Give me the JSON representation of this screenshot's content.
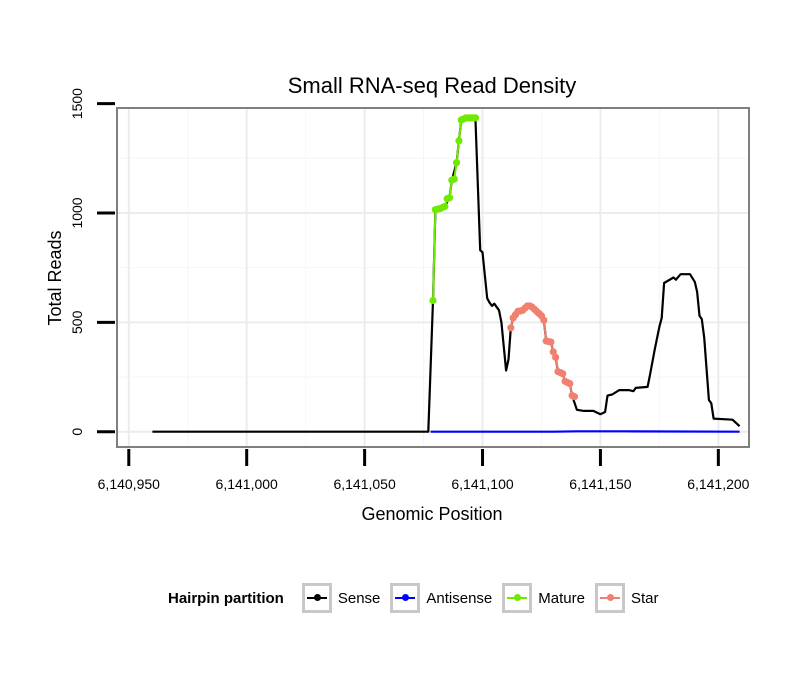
{
  "chart_data": {
    "type": "line",
    "title": "Small RNA-seq Read Density",
    "xlabel": "Genomic Position",
    "ylabel": "Total Reads",
    "xlim": [
      6140945,
      6141213
    ],
    "ylim": [
      -70,
      1480
    ],
    "x_ticks": [
      6140950,
      6141000,
      6141050,
      6141100,
      6141150,
      6141200
    ],
    "x_tick_labels": [
      "6,140,950",
      "6,141,000",
      "6,141,050",
      "6,141,100",
      "6,141,150",
      "6,141,200"
    ],
    "y_ticks": [
      0,
      500,
      1000,
      1500
    ],
    "y_tick_labels": [
      "0",
      "500",
      "1000",
      "1500"
    ],
    "grid": true,
    "series": [
      {
        "name": "Sense",
        "color": "#000000",
        "points": [
          [
            6140960,
            0
          ],
          [
            6141077,
            0
          ],
          [
            6141079,
            600
          ],
          [
            6141080,
            1015
          ],
          [
            6141082,
            1020
          ],
          [
            6141084,
            1030
          ],
          [
            6141086,
            1070
          ],
          [
            6141087,
            1150
          ],
          [
            6141089,
            1230
          ],
          [
            6141090,
            1330
          ],
          [
            6141091,
            1425
          ],
          [
            6141093,
            1435
          ],
          [
            6141095,
            1435
          ],
          [
            6141097,
            1435
          ],
          [
            6141099,
            830
          ],
          [
            6141100,
            820
          ],
          [
            6141102,
            610
          ],
          [
            6141103,
            590
          ],
          [
            6141104,
            575
          ],
          [
            6141105,
            585
          ],
          [
            6141107,
            555
          ],
          [
            6141108,
            500
          ],
          [
            6141110,
            280
          ],
          [
            6141111,
            330
          ],
          [
            6141112,
            475
          ],
          [
            6141113,
            520
          ],
          [
            6141115,
            550
          ],
          [
            6141117,
            555
          ],
          [
            6141119,
            575
          ],
          [
            6141121,
            570
          ],
          [
            6141123,
            550
          ],
          [
            6141125,
            530
          ],
          [
            6141126,
            510
          ],
          [
            6141127,
            415
          ],
          [
            6141129,
            410
          ],
          [
            6141130,
            365
          ],
          [
            6141131,
            340
          ],
          [
            6141132,
            275
          ],
          [
            6141134,
            265
          ],
          [
            6141135,
            230
          ],
          [
            6141137,
            220
          ],
          [
            6141138,
            165
          ],
          [
            6141140,
            100
          ],
          [
            6141143,
            95
          ],
          [
            6141147,
            95
          ],
          [
            6141150,
            80
          ],
          [
            6141152,
            90
          ],
          [
            6141153,
            165
          ],
          [
            6141155,
            170
          ],
          [
            6141158,
            190
          ],
          [
            6141162,
            190
          ],
          [
            6141164,
            185
          ],
          [
            6141165,
            200
          ],
          [
            6141170,
            205
          ],
          [
            6141171,
            260
          ],
          [
            6141173,
            375
          ],
          [
            6141175,
            480
          ],
          [
            6141176,
            520
          ],
          [
            6141177,
            680
          ],
          [
            6141181,
            705
          ],
          [
            6141182,
            695
          ],
          [
            6141184,
            720
          ],
          [
            6141188,
            720
          ],
          [
            6141190,
            685
          ],
          [
            6141191,
            640
          ],
          [
            6141192,
            530
          ],
          [
            6141193,
            515
          ],
          [
            6141194,
            430
          ],
          [
            6141196,
            145
          ],
          [
            6141197,
            130
          ],
          [
            6141198,
            60
          ],
          [
            6141206,
            55
          ],
          [
            6141209,
            25
          ]
        ]
      },
      {
        "name": "Antisense",
        "color": "#0000ff",
        "points": [
          [
            6141078,
            0
          ],
          [
            6141130,
            0
          ],
          [
            6141140,
            2
          ],
          [
            6141160,
            2
          ],
          [
            6141209,
            0
          ]
        ]
      },
      {
        "name": "Mature",
        "color": "#6eea00",
        "points": [
          [
            6141079,
            600
          ],
          [
            6141080,
            1015
          ],
          [
            6141081,
            1018
          ],
          [
            6141082,
            1020
          ],
          [
            6141083,
            1025
          ],
          [
            6141084,
            1030
          ],
          [
            6141085,
            1065
          ],
          [
            6141086,
            1070
          ],
          [
            6141087,
            1150
          ],
          [
            6141088,
            1155
          ],
          [
            6141089,
            1230
          ],
          [
            6141090,
            1330
          ],
          [
            6141091,
            1425
          ],
          [
            6141092,
            1430
          ],
          [
            6141093,
            1435
          ],
          [
            6141094,
            1435
          ],
          [
            6141095,
            1435
          ],
          [
            6141096,
            1435
          ],
          [
            6141097,
            1435
          ]
        ]
      },
      {
        "name": "Star",
        "color": "#f08070",
        "points": [
          [
            6141112,
            475
          ],
          [
            6141113,
            520
          ],
          [
            6141114,
            535
          ],
          [
            6141115,
            550
          ],
          [
            6141116,
            552
          ],
          [
            6141117,
            555
          ],
          [
            6141118,
            565
          ],
          [
            6141119,
            575
          ],
          [
            6141120,
            575
          ],
          [
            6141121,
            570
          ],
          [
            6141122,
            560
          ],
          [
            6141123,
            550
          ],
          [
            6141124,
            540
          ],
          [
            6141125,
            530
          ],
          [
            6141126,
            510
          ],
          [
            6141127,
            415
          ],
          [
            6141128,
            412
          ],
          [
            6141129,
            410
          ],
          [
            6141130,
            365
          ],
          [
            6141131,
            340
          ],
          [
            6141132,
            275
          ],
          [
            6141133,
            270
          ],
          [
            6141134,
            265
          ],
          [
            6141135,
            230
          ],
          [
            6141136,
            225
          ],
          [
            6141137,
            220
          ],
          [
            6141138,
            165
          ],
          [
            6141139,
            160
          ]
        ]
      }
    ],
    "legend": {
      "title": "Hairpin partition",
      "position": "bottom",
      "items": [
        {
          "label": "Sense",
          "color": "#000000"
        },
        {
          "label": "Antisense",
          "color": "#0000ff"
        },
        {
          "label": "Mature",
          "color": "#6eea00"
        },
        {
          "label": "Star",
          "color": "#f08070"
        }
      ]
    }
  }
}
